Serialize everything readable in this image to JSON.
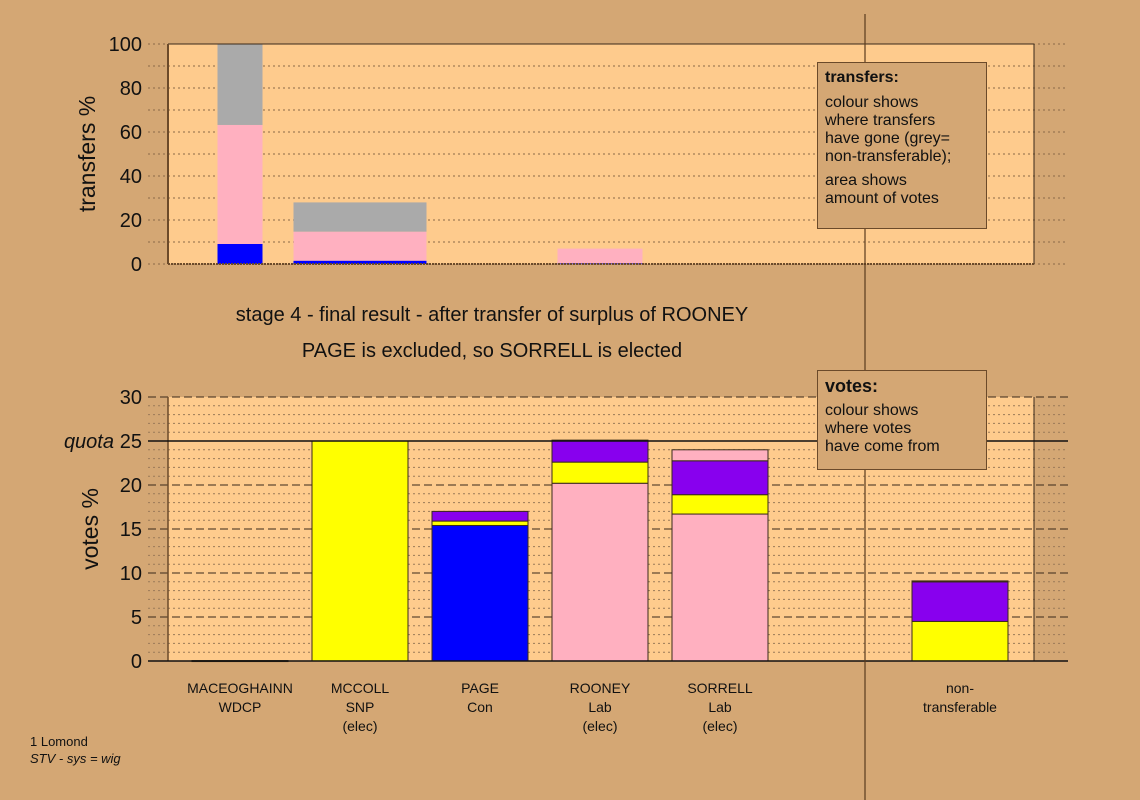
{
  "colors": {
    "background": "#d4a774",
    "plot_bg": "#fecb8d",
    "grey": "#aaaaaa",
    "pink": "#ffb0c0",
    "blue": "#0000ff",
    "yellow": "#ffff00",
    "purple": "#8800ee",
    "divider": "#5a3b1e"
  },
  "heading": {
    "line1": "stage 4 - final result - after transfer of surplus of ROONEY",
    "line2": "PAGE is excluded, so SORRELL is elected"
  },
  "footer": {
    "constituency": "1 Lomond",
    "system": "STV - sys = wig"
  },
  "legend_transfers": {
    "title": "transfers:",
    "para1": [
      "colour shows",
      "where transfers",
      "have gone (grey=",
      "non-transferable);"
    ],
    "para2": [
      "area shows",
      "amount of votes"
    ]
  },
  "legend_votes": {
    "title": "votes:",
    "para1": [
      "colour shows",
      "where votes",
      "have come from"
    ]
  },
  "chart_data": [
    {
      "type": "bar",
      "title": "transfers",
      "ylabel": "transfers %",
      "ylim": [
        0,
        100
      ],
      "yticks": [
        0,
        20,
        40,
        60,
        80,
        100
      ],
      "grid": "dotted every 10",
      "note": "bar width proportional to amount of votes transferred",
      "bars": [
        {
          "category": "MACEOGHAINN",
          "segments": [
            {
              "color": "blue",
              "value": 9.1
            },
            {
              "color": "pink",
              "value": 54.1
            },
            {
              "color": "grey",
              "value": 36.8
            }
          ]
        },
        {
          "category": "MCCOLL",
          "segments": [
            {
              "color": "blue",
              "value": 1.5
            },
            {
              "color": "pink",
              "value": 13.2
            },
            {
              "color": "grey",
              "value": 13.3
            }
          ]
        },
        {
          "category": "ROONEY",
          "segments": [
            {
              "color": "blue",
              "value": 0.3
            },
            {
              "color": "pink",
              "value": 6.7
            }
          ]
        }
      ]
    },
    {
      "type": "bar",
      "title": "votes",
      "ylabel": "votes %",
      "ylim": [
        0,
        30
      ],
      "yticks": [
        0,
        5,
        10,
        15,
        20,
        25,
        30
      ],
      "quota": 25,
      "quota_label": "quota",
      "grid": "dashed every 5, dotted every 1",
      "legend": "top-right",
      "categories": [
        {
          "name": "MACEOGHAINN",
          "party": "WDCP",
          "status": ""
        },
        {
          "name": "MCCOLL",
          "party": "SNP",
          "status": "(elec)"
        },
        {
          "name": "PAGE",
          "party": "Con",
          "status": ""
        },
        {
          "name": "ROONEY",
          "party": "Lab",
          "status": "(elec)"
        },
        {
          "name": "SORRELL",
          "party": "Lab",
          "status": "(elec)"
        },
        {
          "name": "",
          "party": "",
          "status": ""
        },
        {
          "name": "non-",
          "party": "transferable",
          "status": ""
        }
      ],
      "bars": [
        [
          {
            "color": "blue",
            "value": 0.05
          }
        ],
        [
          {
            "color": "yellow",
            "value": 25.0
          }
        ],
        [
          {
            "color": "blue",
            "value": 15.4
          },
          {
            "color": "yellow",
            "value": 0.5
          },
          {
            "color": "purple",
            "value": 1.1
          }
        ],
        [
          {
            "color": "pink",
            "value": 20.2
          },
          {
            "color": "yellow",
            "value": 2.4
          },
          {
            "color": "purple",
            "value": 2.5
          }
        ],
        [
          {
            "color": "pink",
            "value": 16.7
          },
          {
            "color": "yellow",
            "value": 2.2
          },
          {
            "color": "purple",
            "value": 3.85
          },
          {
            "color": "pink",
            "value": 1.25
          }
        ],
        [],
        [
          {
            "color": "yellow",
            "value": 4.5
          },
          {
            "color": "purple",
            "value": 4.5
          },
          {
            "color": "blue",
            "value": 0.1
          }
        ]
      ]
    }
  ]
}
